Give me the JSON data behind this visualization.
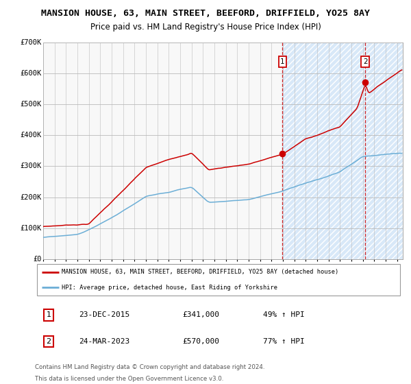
{
  "title": "MANSION HOUSE, 63, MAIN STREET, BEEFORD, DRIFFIELD, YO25 8AY",
  "subtitle": "Price paid vs. HM Land Registry's House Price Index (HPI)",
  "title_fontsize": 9.5,
  "subtitle_fontsize": 8.5,
  "ylim": [
    0,
    700000
  ],
  "yticks": [
    0,
    100000,
    200000,
    300000,
    400000,
    500000,
    600000,
    700000
  ],
  "ytick_labels": [
    "£0",
    "£100K",
    "£200K",
    "£300K",
    "£400K",
    "£500K",
    "£600K",
    "£700K"
  ],
  "xlim_start": 1995.0,
  "xlim_end": 2026.5,
  "x_start_year": 1995,
  "x_end_year": 2026,
  "hpi_color": "#6baed6",
  "price_color": "#cc0000",
  "plot_bg_color": "#f0f0f0",
  "hatch_bg_color": "#ddeeff",
  "grid_color": "#cccccc",
  "hatch_area_start": 2015.97,
  "marker1_x": 2015.97,
  "marker1_y": 341000,
  "marker1_label": "1",
  "marker1_date": "23-DEC-2015",
  "marker1_price": "£341,000",
  "marker1_hpi": "49% ↑ HPI",
  "marker2_x": 2023.22,
  "marker2_y": 570000,
  "marker2_label": "2",
  "marker2_date": "24-MAR-2023",
  "marker2_price": "£570,000",
  "marker2_hpi": "77% ↑ HPI",
  "legend_line1": "MANSION HOUSE, 63, MAIN STREET, BEEFORD, DRIFFIELD, YO25 8AY (detached house)",
  "legend_line2": "HPI: Average price, detached house, East Riding of Yorkshire",
  "footer1": "Contains HM Land Registry data © Crown copyright and database right 2024.",
  "footer2": "This data is licensed under the Open Government Licence v3.0."
}
